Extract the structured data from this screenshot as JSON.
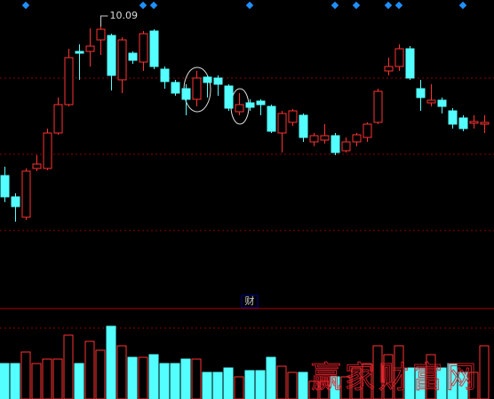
{
  "chart_data": [
    {
      "type": "candlestick",
      "up_color": "#ff3232",
      "down_color": "#54ffff",
      "ylim": [
        8.515,
        10.24
      ],
      "high_label": 10.09,
      "open": [
        9.25,
        9.13,
        9.015,
        9.29,
        9.29,
        9.49,
        9.65,
        9.95,
        9.95,
        10.015,
        10.04,
        9.79,
        9.94,
        9.89,
        10.065,
        9.85,
        9.775,
        9.74,
        9.68,
        9.805,
        9.8,
        9.755,
        9.61,
        9.66,
        9.67,
        9.64,
        9.49,
        9.55,
        9.59,
        9.44,
        9.45,
        9.475,
        9.39,
        9.44,
        9.465,
        9.55,
        9.84,
        9.865,
        9.965,
        9.74,
        9.66,
        9.675,
        9.615,
        9.575,
        9.545,
        9.54
      ],
      "high": [
        9.3,
        9.15,
        9.29,
        9.365,
        9.515,
        9.69,
        9.965,
        9.99,
        10.08,
        10.09,
        10.05,
        10.03,
        9.95,
        10.065,
        10.075,
        9.865,
        9.79,
        9.765,
        9.84,
        9.815,
        9.815,
        9.765,
        9.715,
        9.68,
        9.68,
        9.65,
        9.615,
        9.625,
        9.6,
        9.49,
        9.54,
        9.49,
        9.465,
        9.49,
        9.55,
        9.74,
        9.915,
        9.99,
        9.98,
        9.79,
        9.765,
        9.69,
        9.63,
        9.59,
        9.59,
        9.59
      ],
      "low": [
        9.1,
        8.99,
        9.0,
        9.275,
        9.28,
        9.48,
        9.64,
        9.79,
        9.865,
        9.93,
        9.73,
        9.715,
        9.88,
        9.84,
        9.85,
        9.74,
        9.7,
        9.59,
        9.64,
        9.69,
        9.7,
        9.615,
        9.59,
        9.615,
        9.59,
        9.49,
        9.38,
        9.53,
        9.44,
        9.415,
        9.43,
        9.365,
        9.38,
        9.415,
        9.44,
        9.54,
        9.815,
        9.84,
        9.79,
        9.615,
        9.64,
        9.6,
        9.515,
        9.5,
        9.515,
        9.49
      ],
      "close": [
        9.13,
        9.075,
        9.275,
        9.315,
        9.49,
        9.65,
        9.915,
        9.94,
        9.98,
        10.075,
        9.815,
        10.015,
        9.9,
        10.05,
        9.865,
        9.78,
        9.715,
        9.68,
        9.8,
        9.775,
        9.765,
        9.63,
        9.65,
        9.635,
        9.65,
        9.5,
        9.6,
        9.615,
        9.465,
        9.475,
        9.475,
        9.38,
        9.44,
        9.48,
        9.54,
        9.725,
        9.865,
        9.965,
        9.8,
        9.69,
        9.675,
        9.64,
        9.54,
        9.515,
        9.555,
        9.55
      ]
    },
    {
      "type": "bar",
      "ylim": [
        0,
        100
      ],
      "values": [
        40,
        40,
        53,
        40,
        45,
        45,
        72,
        40,
        65,
        55,
        82,
        60,
        47,
        47,
        50,
        40,
        40,
        45,
        45,
        30,
        30,
        35,
        25,
        32,
        32,
        47,
        37,
        30,
        30,
        20,
        20,
        25,
        25,
        35,
        40,
        60,
        50,
        60,
        35,
        35,
        50,
        35,
        40,
        30,
        30,
        60
      ]
    }
  ],
  "info_label": "财",
  "watermark": "赢家财富网"
}
